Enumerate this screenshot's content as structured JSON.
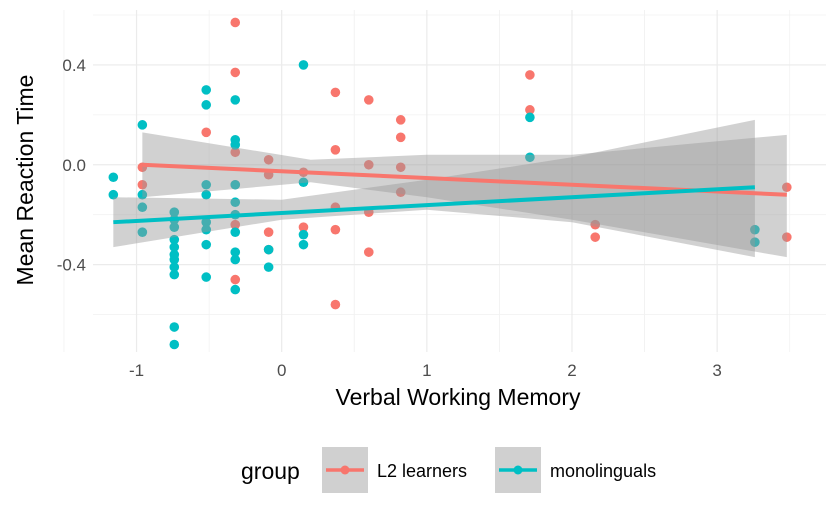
{
  "chart_data": {
    "type": "scatter",
    "title": "",
    "xlabel": "Verbal Working Memory",
    "ylabel": "Mean Reaction Time",
    "xlim": [
      -1.3,
      3.75
    ],
    "ylim": [
      -0.75,
      0.62
    ],
    "x_ticks": [
      -1,
      0,
      1,
      2,
      3
    ],
    "y_ticks": [
      -0.4,
      0.0,
      0.4
    ],
    "x_tick_labels": [
      "-1",
      "0",
      "1",
      "2",
      "3"
    ],
    "y_tick_labels": [
      "-0.4",
      "0.0",
      "0.4"
    ],
    "grid": true,
    "legend_position": "bottom",
    "legend_title": "group",
    "series": [
      {
        "name": "L2 learners",
        "color": "#F8766D",
        "x": [
          -0.32,
          -0.32,
          -0.52,
          -0.32,
          -0.09,
          -0.09,
          -0.32,
          -0.32,
          -0.09,
          -0.32,
          -0.09,
          0.37,
          0.37,
          0.37,
          0.37,
          0.37,
          0.6,
          0.6,
          0.6,
          0.6,
          0.82,
          0.82,
          0.82,
          0.82,
          -0.96,
          -0.96,
          0.15,
          0.15,
          1.71,
          1.71,
          2.16,
          2.16,
          3.48,
          3.48
        ],
        "y": [
          0.57,
          0.37,
          0.13,
          0.05,
          0.02,
          -0.04,
          -0.08,
          -0.24,
          -0.27,
          -0.46,
          -0.34,
          0.29,
          0.06,
          -0.17,
          -0.26,
          -0.56,
          0.26,
          0.0,
          -0.19,
          -0.35,
          0.18,
          0.11,
          -0.01,
          -0.11,
          -0.01,
          -0.08,
          -0.03,
          -0.25,
          0.36,
          0.22,
          -0.24,
          -0.29,
          -0.09,
          -0.29
        ]
      },
      {
        "name": "monolinguals",
        "color": "#00BFC4",
        "x": [
          -1.16,
          -1.16,
          -0.96,
          -0.96,
          -0.96,
          -0.96,
          -0.74,
          -0.74,
          -0.74,
          -0.74,
          -0.74,
          -0.74,
          -0.74,
          -0.74,
          -0.74,
          -0.74,
          -0.74,
          -0.52,
          -0.52,
          -0.52,
          -0.52,
          -0.52,
          -0.52,
          -0.52,
          -0.52,
          -0.32,
          -0.32,
          -0.32,
          -0.32,
          -0.32,
          -0.32,
          -0.32,
          -0.32,
          -0.32,
          -0.32,
          -0.09,
          -0.09,
          0.15,
          0.15,
          0.15,
          0.15,
          1.71,
          1.71,
          3.26,
          3.26
        ],
        "y": [
          -0.05,
          -0.12,
          0.16,
          -0.12,
          -0.17,
          -0.27,
          -0.19,
          -0.22,
          -0.25,
          -0.3,
          -0.33,
          -0.36,
          -0.38,
          -0.41,
          -0.44,
          -0.65,
          -0.72,
          0.3,
          0.24,
          -0.08,
          -0.12,
          -0.23,
          -0.26,
          -0.32,
          -0.45,
          0.26,
          0.1,
          0.08,
          -0.08,
          -0.15,
          -0.2,
          -0.27,
          -0.35,
          -0.38,
          -0.5,
          -0.34,
          -0.41,
          0.4,
          -0.07,
          -0.28,
          -0.32,
          0.19,
          0.03,
          -0.26,
          -0.31
        ]
      }
    ],
    "fits": [
      {
        "name": "L2 learners",
        "color": "#F8766D",
        "x": [
          -0.96,
          3.48
        ],
        "y": [
          0.0,
          -0.12
        ],
        "band": {
          "x": [
            -0.96,
            0.2,
            1.0,
            2.0,
            3.48
          ],
          "lower": [
            -0.13,
            -0.07,
            -0.13,
            -0.22,
            -0.37
          ],
          "upper": [
            0.13,
            0.02,
            0.04,
            0.04,
            0.12
          ]
        }
      },
      {
        "name": "monolinguals",
        "color": "#00BFC4",
        "x": [
          -1.16,
          3.26
        ],
        "y": [
          -0.23,
          -0.09
        ],
        "band": {
          "x": [
            -1.16,
            0.0,
            1.0,
            2.0,
            3.26
          ],
          "lower": [
            -0.33,
            -0.22,
            -0.18,
            -0.23,
            -0.37
          ],
          "upper": [
            -0.13,
            -0.14,
            -0.06,
            0.03,
            0.18
          ]
        }
      }
    ]
  }
}
